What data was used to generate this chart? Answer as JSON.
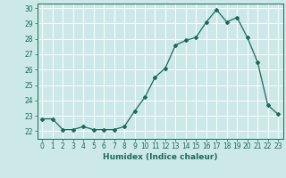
{
  "x": [
    0,
    1,
    2,
    3,
    4,
    5,
    6,
    7,
    8,
    9,
    10,
    11,
    12,
    13,
    14,
    15,
    16,
    17,
    18,
    19,
    20,
    21,
    22,
    23
  ],
  "y": [
    22.8,
    22.8,
    22.1,
    22.1,
    22.3,
    22.1,
    22.1,
    22.1,
    22.3,
    23.3,
    24.2,
    25.5,
    26.1,
    27.6,
    27.9,
    28.1,
    29.1,
    29.9,
    29.1,
    29.4,
    28.1,
    26.5,
    23.7,
    23.1
  ],
  "xlim": [
    -0.5,
    23.5
  ],
  "ylim": [
    21.5,
    30.3
  ],
  "yticks": [
    22,
    23,
    24,
    25,
    26,
    27,
    28,
    29,
    30
  ],
  "xticks": [
    0,
    1,
    2,
    3,
    4,
    5,
    6,
    7,
    8,
    9,
    10,
    11,
    12,
    13,
    14,
    15,
    16,
    17,
    18,
    19,
    20,
    21,
    22,
    23
  ],
  "xlabel": "Humidex (Indice chaleur)",
  "line_color": "#1a6b5a",
  "marker": "D",
  "marker_size": 2.0,
  "bg_color": "#cce8e8",
  "grid_color": "#ffffff",
  "tick_color": "#1a6b5a",
  "label_color": "#1a6b5a",
  "tick_fontsize": 5.5,
  "xlabel_fontsize": 6.5
}
